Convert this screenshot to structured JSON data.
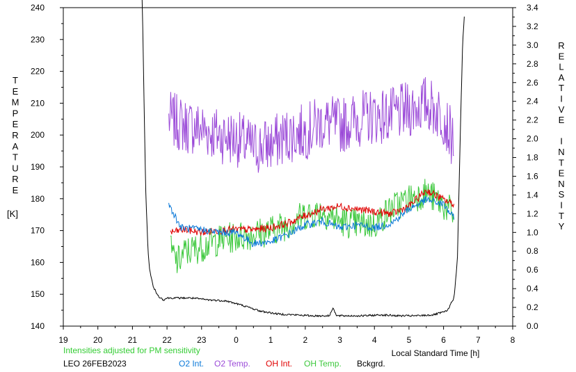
{
  "chart_data": {
    "type": "line",
    "xlabel": "Local Standard Time [h]",
    "x_ticks": [
      "19",
      "20",
      "21",
      "22",
      "23",
      "0",
      "1",
      "2",
      "3",
      "4",
      "5",
      "6",
      "7",
      "8"
    ],
    "x_range_hours": [
      19,
      32
    ],
    "left_axis": {
      "label_letters": [
        "T",
        "E",
        "M",
        "P",
        "E",
        "R",
        "A",
        "T",
        "U",
        "R",
        "E"
      ],
      "unit": "[K]",
      "range": [
        140,
        240
      ],
      "ticks": [
        "140",
        "150",
        "160",
        "170",
        "180",
        "190",
        "200",
        "210",
        "220",
        "230",
        "240"
      ]
    },
    "right_axis": {
      "label_letters": [
        "R",
        "E",
        "L",
        "A",
        "T",
        "I",
        "V",
        "E",
        " ",
        "I",
        "N",
        "T",
        "E",
        "N",
        "S",
        "I",
        "T",
        "Y"
      ],
      "range": [
        0.0,
        3.4
      ],
      "ticks": [
        "0.0",
        "0.2",
        "0.4",
        "0.6",
        "0.8",
        "1.0",
        "1.2",
        "1.4",
        "1.6",
        "1.8",
        "2.0",
        "2.2",
        "2.4",
        "2.6",
        "2.8",
        "3.0",
        "3.2",
        "3.4"
      ]
    },
    "note": "Intensities adjusted for PM sensitivity",
    "station": "LEO 26FEB2023",
    "colors": {
      "o2_int": "#0a78d8",
      "o2_temp": "#9b4ad8",
      "oh_int": "#e00000",
      "oh_temp": "#3cc83c",
      "bckgrd": "#000000",
      "note": "#33cc33"
    },
    "legend": [
      {
        "key": "o2_int",
        "label": "O2 Int."
      },
      {
        "key": "o2_temp",
        "label": "O2 Temp."
      },
      {
        "key": "oh_int",
        "label": "OH Int."
      },
      {
        "key": "oh_temp",
        "label": "OH Temp."
      },
      {
        "key": "bckgrd",
        "label": "Bckgrd."
      }
    ],
    "series": [
      {
        "key": "o2_temp",
        "axis": "left",
        "noise": 9,
        "x": [
          22.05,
          22.5,
          23.0,
          23.5,
          24.0,
          24.5,
          25.0,
          25.5,
          26.0,
          26.5,
          27.0,
          27.5,
          28.0,
          28.5,
          29.0,
          29.5,
          30.0,
          30.2,
          30.3
        ],
        "y": [
          205,
          203,
          202,
          200,
          199,
          196,
          197,
          200,
          201,
          204,
          203,
          205,
          206,
          206,
          208,
          210,
          206,
          200,
          199
        ]
      },
      {
        "key": "oh_temp",
        "axis": "left",
        "noise": 5,
        "x": [
          22.1,
          22.3,
          22.5,
          23.0,
          23.5,
          24.0,
          24.5,
          25.0,
          25.5,
          26.0,
          26.5,
          27.0,
          27.5,
          28.0,
          28.5,
          29.0,
          29.5,
          30.0,
          30.3
        ],
        "y": [
          164,
          160,
          163,
          165,
          167,
          168,
          169,
          170,
          172,
          175,
          176,
          173,
          172,
          172,
          177,
          180,
          182,
          178,
          175
        ]
      },
      {
        "key": "oh_int",
        "axis": "right",
        "noise": 0.04,
        "x": [
          22.1,
          22.5,
          23.0,
          23.5,
          24.0,
          24.5,
          25.0,
          25.5,
          26.0,
          26.5,
          27.0,
          27.5,
          28.0,
          28.5,
          29.0,
          29.5,
          30.0,
          30.3
        ],
        "y": [
          1.0,
          1.03,
          1.0,
          1.02,
          1.03,
          1.03,
          1.05,
          1.1,
          1.18,
          1.25,
          1.28,
          1.25,
          1.22,
          1.2,
          1.28,
          1.45,
          1.35,
          1.3
        ]
      },
      {
        "key": "o2_int",
        "axis": "right",
        "noise": 0.04,
        "x": [
          22.05,
          22.2,
          22.4,
          23.0,
          23.5,
          24.0,
          24.5,
          25.0,
          25.5,
          26.0,
          26.5,
          27.0,
          27.5,
          28.0,
          28.5,
          29.0,
          29.5,
          30.0,
          30.3
        ],
        "y": [
          1.3,
          1.2,
          1.05,
          1.03,
          1.0,
          1.0,
          0.88,
          0.9,
          0.98,
          1.08,
          1.12,
          1.05,
          1.08,
          1.05,
          1.1,
          1.25,
          1.35,
          1.3,
          1.15
        ]
      },
      {
        "key": "bckgrd",
        "axis": "right",
        "noise": 0.01,
        "x": [
          21.28,
          21.33,
          21.38,
          21.45,
          21.5,
          21.6,
          21.75,
          21.9,
          22.0,
          22.3,
          22.7,
          23.2,
          23.7,
          24.2,
          24.7,
          25.2,
          25.7,
          26.2,
          26.7,
          26.8,
          26.9,
          27.2,
          27.7,
          28.2,
          28.7,
          29.2,
          29.7,
          30.1,
          30.3,
          30.4,
          30.45,
          30.5,
          30.55,
          30.6
        ],
        "y": [
          3.6,
          2.5,
          1.5,
          0.8,
          0.6,
          0.42,
          0.32,
          0.28,
          0.3,
          0.3,
          0.3,
          0.28,
          0.27,
          0.22,
          0.16,
          0.13,
          0.12,
          0.11,
          0.11,
          0.2,
          0.11,
          0.11,
          0.11,
          0.12,
          0.11,
          0.11,
          0.12,
          0.16,
          0.3,
          0.7,
          1.5,
          2.3,
          3.0,
          3.3
        ]
      }
    ]
  }
}
